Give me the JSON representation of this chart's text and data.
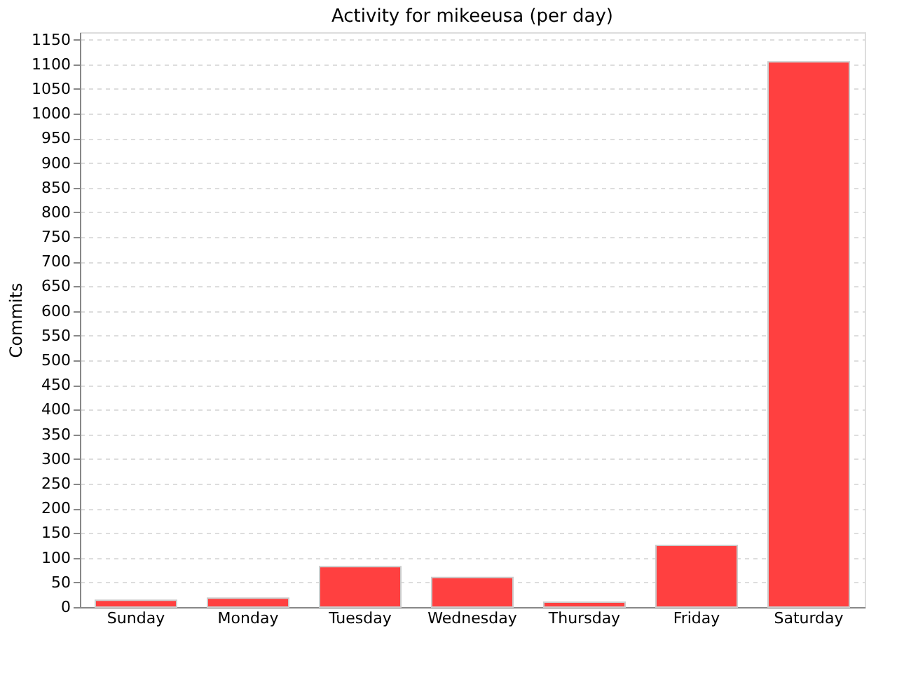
{
  "chart_data": {
    "type": "bar",
    "title": "Activity for mikeeusa (per day)",
    "ylabel": "Commits",
    "categories": [
      "Sunday",
      "Monday",
      "Tuesday",
      "Wednesday",
      "Thursday",
      "Friday",
      "Saturday"
    ],
    "values": [
      14,
      18,
      82,
      60,
      10,
      125,
      1105
    ],
    "color": "#ff4040",
    "ylim": [
      0,
      1165
    ],
    "yticks": [
      0,
      50,
      100,
      150,
      200,
      250,
      300,
      350,
      400,
      450,
      500,
      550,
      600,
      650,
      700,
      750,
      800,
      850,
      900,
      950,
      1000,
      1050,
      1100,
      1150
    ],
    "grid": "y"
  }
}
